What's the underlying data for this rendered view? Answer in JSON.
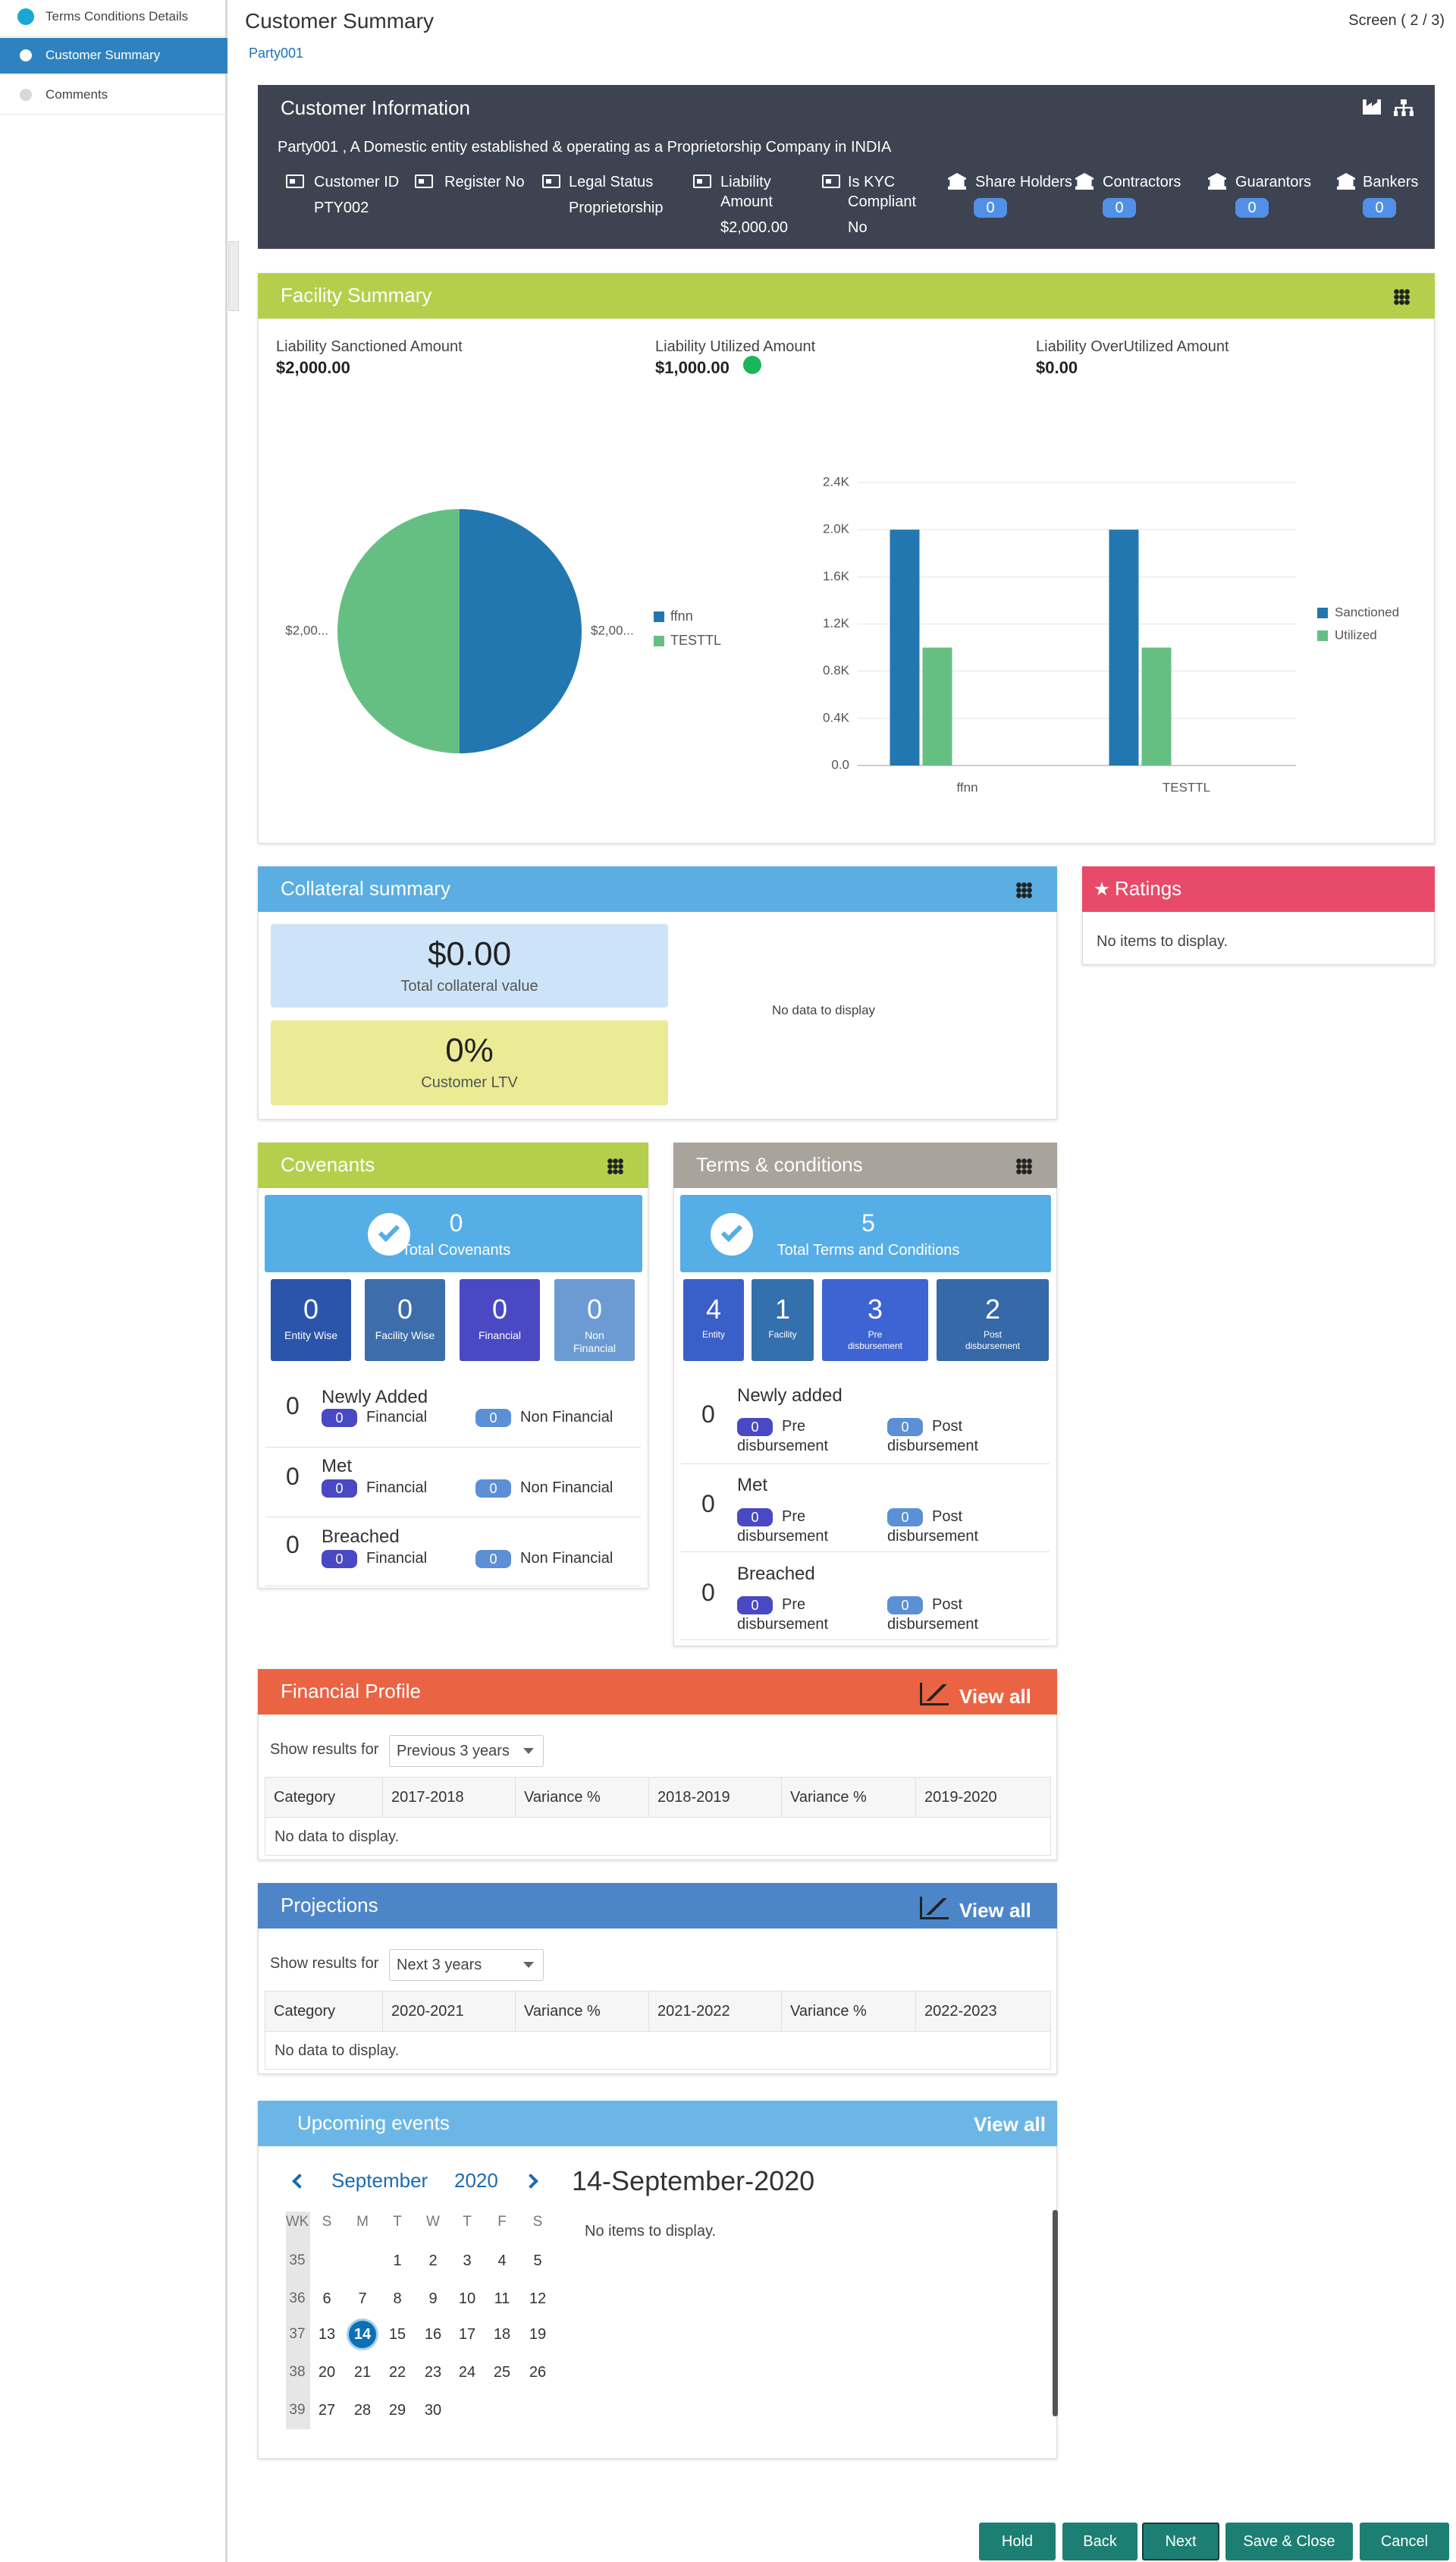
{
  "sidebar": {
    "items": [
      "Terms Conditions Details",
      "Customer Summary",
      "Comments"
    ]
  },
  "header": {
    "title": "Customer Summary",
    "party": "Party001",
    "screen": "Screen ( 2 / 3)"
  },
  "customer_information": {
    "title": "Customer Information",
    "description": "Party001 , A Domestic entity established & operating as a Proprietorship Company in INDIA",
    "fields": [
      {
        "label": "Customer ID",
        "value": "PTY002"
      },
      {
        "label": "Register No"
      },
      {
        "label": "Legal Status",
        "value": "Proprietorship"
      },
      {
        "label": "Liability Amount",
        "value": "$2,000.00"
      },
      {
        "label": "Is KYC Compliant",
        "value": "No"
      }
    ],
    "counts": [
      {
        "label": "Share Holders",
        "count": 0
      },
      {
        "label": "Contractors",
        "count": 0
      },
      {
        "label": "Guarantors",
        "count": 0
      },
      {
        "label": "Bankers",
        "count": 0
      }
    ]
  },
  "facility_summary": {
    "title": "Facility Summary",
    "amounts": [
      {
        "label": "Liability Sanctioned Amount",
        "value": "$2,000.00"
      },
      {
        "label": "Liability Utilized Amount",
        "value": "$1,000.00"
      },
      {
        "label": "Liability OverUtilized Amount",
        "value": "$0.00"
      }
    ],
    "pie_chart": {
      "type": "pie",
      "categories": [
        "ffnn",
        "TESTTL"
      ],
      "values": [
        2000,
        2000
      ],
      "value_labels": [
        "$2,00...",
        "$2,00..."
      ],
      "colors": [
        "#2377b1",
        "#66bf82"
      ]
    },
    "bar_chart": {
      "type": "bar",
      "categories": [
        "ffnn",
        "TESTTL"
      ],
      "series": [
        {
          "name": "Sanctioned",
          "color": "#2377b1",
          "values": [
            2000,
            2000
          ]
        },
        {
          "name": "Utilized",
          "color": "#66bf82",
          "values": [
            1000,
            1000
          ]
        }
      ],
      "ylim": [
        0,
        2400
      ],
      "yticks": [
        {
          "value": 0,
          "label": "0.0"
        },
        {
          "value": 400,
          "label": "0.4K"
        },
        {
          "value": 800,
          "label": "0.8K"
        },
        {
          "value": 1200,
          "label": "1.2K"
        },
        {
          "value": 1600,
          "label": "1.6K"
        },
        {
          "value": 2000,
          "label": "2.0K"
        },
        {
          "value": 2400,
          "label": "2.4K"
        }
      ],
      "grid": true
    }
  },
  "collateral_summary": {
    "title": "Collateral summary",
    "total_value": "$0.00",
    "total_label": "Total collateral value",
    "ltv": "0%",
    "ltv_label": "Customer LTV",
    "chart_message": "No data to display"
  },
  "ratings": {
    "title": "Ratings",
    "message": "No items to display."
  },
  "covenants": {
    "title": "Covenants",
    "total": 0,
    "total_label": "Total Covenants",
    "tiles": [
      {
        "count": 0,
        "label": "Entity Wise"
      },
      {
        "count": 0,
        "label": "Facility Wise"
      },
      {
        "count": 0,
        "label": "Financial"
      },
      {
        "count": 0,
        "label": "Non Financial"
      }
    ],
    "rows": [
      {
        "count": 0,
        "label": "Newly Added",
        "first_count": 0,
        "first_label": "Financial",
        "second_count": 0,
        "second_label": "Non Financial"
      },
      {
        "count": 0,
        "label": "Met",
        "first_count": 0,
        "first_label": "Financial",
        "second_count": 0,
        "second_label": "Non Financial"
      },
      {
        "count": 0,
        "label": "Breached",
        "first_count": 0,
        "first_label": "Financial",
        "second_count": 0,
        "second_label": "Non Financial"
      }
    ]
  },
  "terms_conditions": {
    "title": "Terms & conditions",
    "total": 5,
    "total_label": "Total Terms and Conditions",
    "tiles": [
      {
        "count": 4,
        "label": "Entity"
      },
      {
        "count": 1,
        "label": "Facility"
      },
      {
        "count": 3,
        "label": "Pre disbursement"
      },
      {
        "count": 2,
        "label": "Post disbursement"
      }
    ],
    "rows": [
      {
        "count": 0,
        "label": "Newly added",
        "first_count": 0,
        "first_label": "Pre disbursement",
        "second_count": 0,
        "second_label": "Post disbursement"
      },
      {
        "count": 0,
        "label": "Met",
        "first_count": 0,
        "first_label": "Pre disbursement",
        "second_count": 0,
        "second_label": "Post disbursement"
      },
      {
        "count": 0,
        "label": "Breached",
        "first_count": 0,
        "first_label": "Pre disbursement",
        "second_count": 0,
        "second_label": "Post disbursement"
      }
    ]
  },
  "financial_profile": {
    "title": "Financial Profile",
    "view_all": "View all",
    "filter_label": "Show results for",
    "filter_value": "Previous 3 years",
    "columns": [
      "Category",
      "2017-2018",
      "Variance %",
      "2018-2019",
      "Variance %",
      "2019-2020"
    ],
    "message": "No data to display."
  },
  "projections": {
    "title": "Projections",
    "view_all": "View all",
    "filter_label": "Show results for",
    "filter_value": "Next 3 years",
    "columns": [
      "Category",
      "2020-2021",
      "Variance %",
      "2021-2022",
      "Variance %",
      "2022-2023"
    ],
    "message": "No data to display."
  },
  "upcoming_events": {
    "title": "Upcoming events",
    "view_all": "View all",
    "month": "September",
    "year": "2020",
    "weekdays": [
      "WK",
      "S",
      "M",
      "T",
      "W",
      "T",
      "F",
      "S"
    ],
    "weeks": [
      {
        "week": 35,
        "days": [
          null,
          null,
          1,
          2,
          3,
          4,
          5
        ]
      },
      {
        "week": 36,
        "days": [
          6,
          7,
          8,
          9,
          10,
          11,
          12
        ]
      },
      {
        "week": 37,
        "days": [
          13,
          14,
          15,
          16,
          17,
          18,
          19
        ]
      },
      {
        "week": 38,
        "days": [
          20,
          21,
          22,
          23,
          24,
          25,
          26
        ]
      },
      {
        "week": 39,
        "days": [
          27,
          28,
          29,
          30,
          null,
          null,
          null
        ]
      }
    ],
    "selected_day": 14,
    "date_heading": "14-September-2020",
    "message": "No items to display."
  },
  "buttons": [
    "Hold",
    "Back",
    "Next",
    "Save & Close",
    "Cancel"
  ]
}
